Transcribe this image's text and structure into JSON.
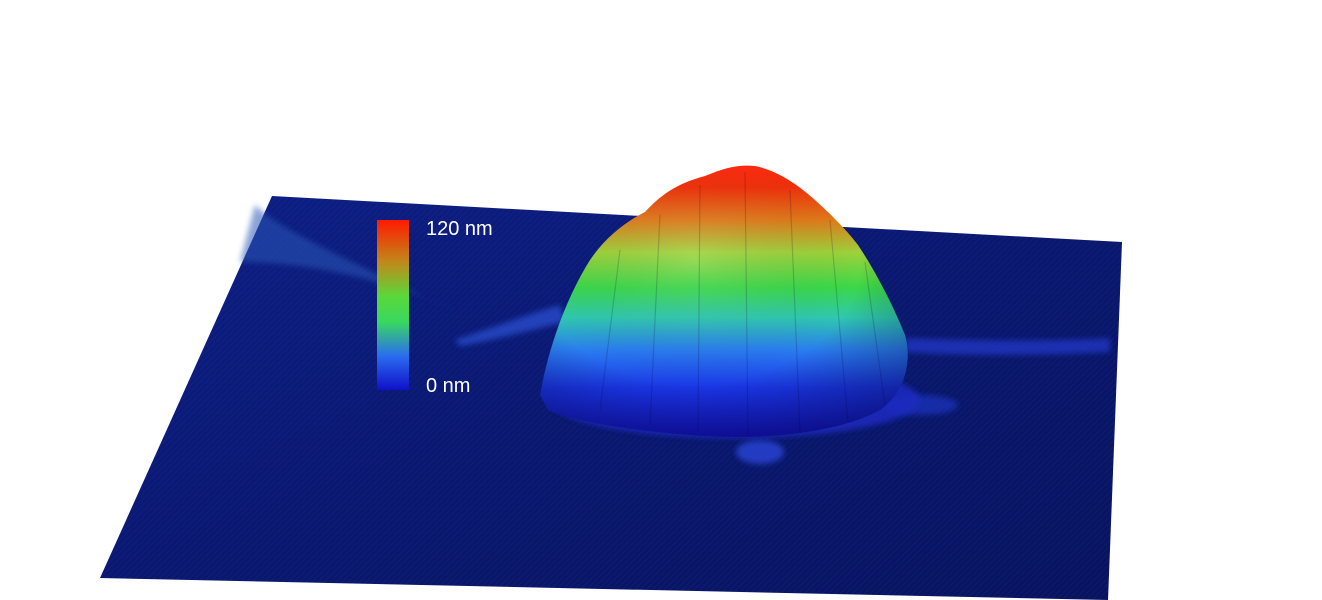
{
  "image": {
    "subject": "afm-height-map-3d",
    "colors": {
      "background": "#ffffff",
      "substrate": "#0a1766",
      "scale_low": "#1a1ad0",
      "scale_mid_low": "#2a7cf0",
      "scale_mid": "#33e04a",
      "scale_mid_high": "#9bd23a",
      "scale_high": "#ff1a00"
    }
  },
  "color_scale": {
    "max_label": "120 nm",
    "min_label": "0 nm"
  }
}
